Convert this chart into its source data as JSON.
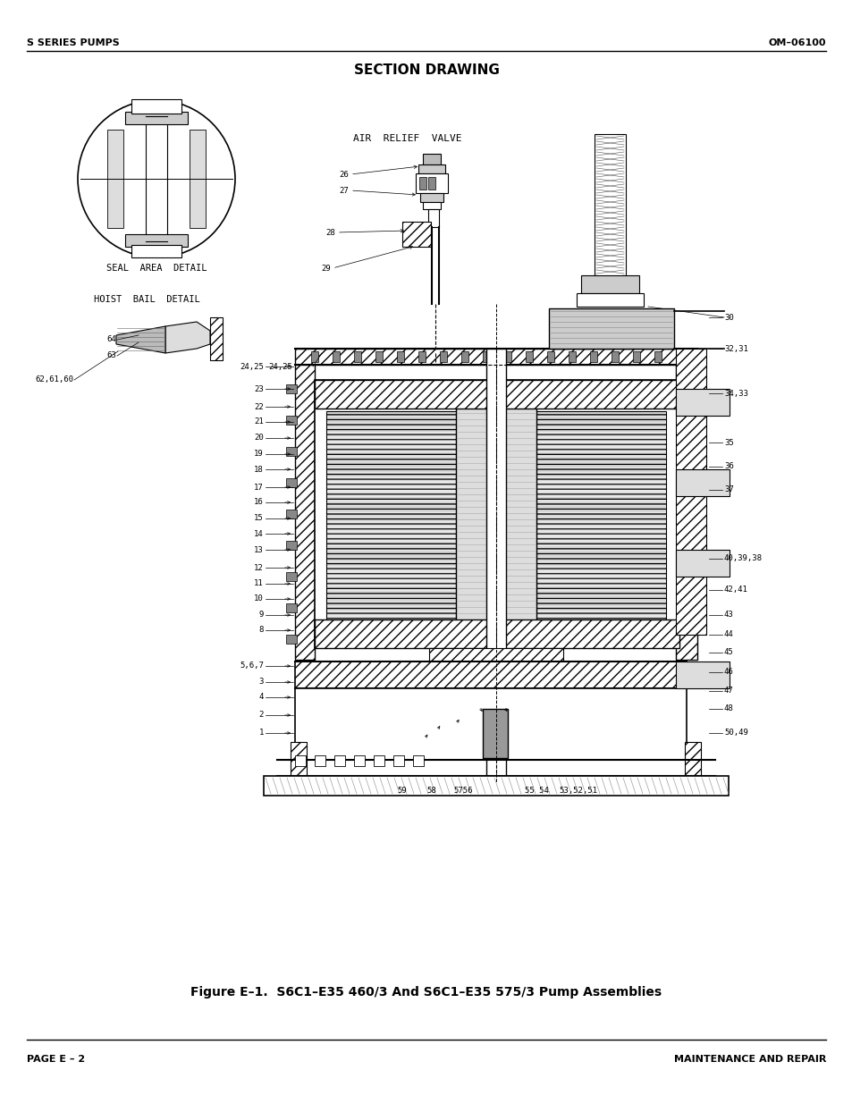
{
  "page_title": "SECTION DRAWING",
  "header_left": "S SERIES PUMPS",
  "header_right": "OM–06100",
  "footer_left": "PAGE E – 2",
  "footer_right": "MAINTENANCE AND REPAIR",
  "figure_caption": "Figure E–1.  S6C1–E35 460/3 And S6C1–E35 575/3 Pump Assemblies",
  "seal_area_label": "SEAL  AREA  DETAIL",
  "hoist_bail_label": "HOIST  BAIL  DETAIL",
  "air_relief_label": "AIR  RELIEF  VALVE",
  "bg_color": "#ffffff",
  "line_color": "#000000",
  "text_color": "#000000",
  "left_labels": [
    [
      295,
      410,
      "24,25"
    ],
    [
      295,
      435,
      "23"
    ],
    [
      295,
      455,
      "22"
    ],
    [
      295,
      472,
      "21"
    ],
    [
      295,
      490,
      "20"
    ],
    [
      295,
      508,
      "19"
    ],
    [
      295,
      525,
      "18"
    ],
    [
      295,
      545,
      "17"
    ],
    [
      295,
      562,
      "16"
    ],
    [
      295,
      580,
      "15"
    ],
    [
      295,
      597,
      "14"
    ],
    [
      295,
      615,
      "13"
    ],
    [
      295,
      635,
      "12"
    ],
    [
      295,
      653,
      "11"
    ],
    [
      295,
      670,
      "10"
    ],
    [
      295,
      688,
      "9"
    ],
    [
      295,
      705,
      "8"
    ],
    [
      295,
      745,
      "5,6,7"
    ],
    [
      295,
      763,
      "3"
    ],
    [
      295,
      780,
      "4"
    ],
    [
      295,
      800,
      "2"
    ],
    [
      295,
      820,
      "1"
    ]
  ],
  "right_labels": [
    [
      810,
      355,
      "30"
    ],
    [
      810,
      390,
      "32,31"
    ],
    [
      810,
      440,
      "34,33"
    ],
    [
      810,
      495,
      "35"
    ],
    [
      810,
      522,
      "36"
    ],
    [
      810,
      548,
      "37"
    ],
    [
      810,
      625,
      "40,39,38"
    ],
    [
      810,
      660,
      "42,41"
    ],
    [
      810,
      688,
      "43"
    ],
    [
      810,
      710,
      "44"
    ],
    [
      810,
      730,
      "45"
    ],
    [
      810,
      752,
      "46"
    ],
    [
      810,
      773,
      "47"
    ],
    [
      810,
      793,
      "48"
    ],
    [
      810,
      820,
      "50,49"
    ]
  ],
  "bail_labels": [
    [
      130,
      380,
      "64"
    ],
    [
      130,
      398,
      "63"
    ],
    [
      82,
      425,
      "62,61,60"
    ]
  ],
  "bottom_labels": [
    [
      450,
      880,
      "59"
    ],
    [
      483,
      880,
      "58"
    ],
    [
      518,
      880,
      "5756"
    ],
    [
      600,
      880,
      "55 54"
    ],
    [
      647,
      880,
      "53,52,51"
    ]
  ],
  "valve_labels": [
    [
      390,
      195,
      "26"
    ],
    [
      390,
      213,
      "27"
    ],
    [
      375,
      260,
      "28"
    ],
    [
      370,
      300,
      "29"
    ]
  ]
}
